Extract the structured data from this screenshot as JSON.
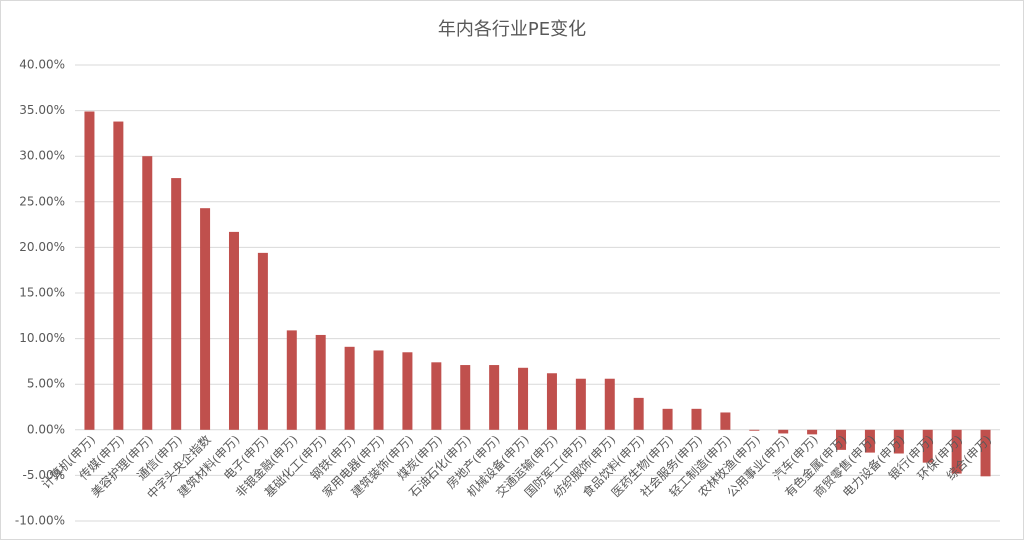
{
  "chart_data": {
    "type": "bar",
    "title": "年内各行业PE变化",
    "categories": [
      "计算机(申万)",
      "传媒(申万)",
      "美容护理(申万)",
      "通信(申万)",
      "中字头央企指数",
      "建筑材料(申万)",
      "电子(申万)",
      "非银金融(申万)",
      "基础化工(申万)",
      "钢铁(申万)",
      "家用电器(申万)",
      "建筑装饰(申万)",
      "煤炭(申万)",
      "石油石化(申万)",
      "房地产(申万)",
      "机械设备(申万)",
      "交通运输(申万)",
      "国防军工(申万)",
      "纺织服饰(申万)",
      "食品饮料(申万)",
      "医药生物(申万)",
      "社会服务(申万)",
      "轻工制造(申万)",
      "农林牧渔(申万)",
      "公用事业(申万)",
      "汽车(申万)",
      "有色金属(申万)",
      "商贸零售(申万)",
      "电力设备(申万)",
      "银行(申万)",
      "环保(申万)",
      "综合(申万)"
    ],
    "values": [
      34.9,
      33.8,
      30.0,
      27.6,
      24.3,
      21.7,
      19.4,
      10.9,
      10.4,
      9.1,
      8.7,
      8.5,
      7.4,
      7.1,
      7.1,
      6.8,
      6.2,
      5.6,
      5.6,
      3.5,
      2.3,
      2.3,
      1.9,
      -0.1,
      -0.4,
      -0.5,
      -2.2,
      -2.5,
      -2.6,
      -3.6,
      -4.8,
      -5.1
    ],
    "color": "#c0504d",
    "ylim": [
      -10,
      40
    ],
    "yticks": [
      {
        "value": -10,
        "label": "-10.00%"
      },
      {
        "value": -5,
        "label": "-5.00%"
      },
      {
        "value": 0,
        "label": "0.00%"
      },
      {
        "value": 5,
        "label": "5.00%"
      },
      {
        "value": 10,
        "label": "10.00%"
      },
      {
        "value": 15,
        "label": "15.00%"
      },
      {
        "value": 20,
        "label": "20.00%"
      },
      {
        "value": 25,
        "label": "25.00%"
      },
      {
        "value": 30,
        "label": "30.00%"
      },
      {
        "value": 35,
        "label": "35.00%"
      },
      {
        "value": 40,
        "label": "40.00%"
      }
    ],
    "grid": true
  }
}
